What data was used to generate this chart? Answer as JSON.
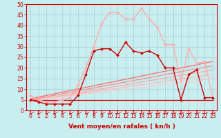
{
  "xlabel": "Vent moyen/en rafales ( kn/h )",
  "xlim": [
    -0.5,
    23.5
  ],
  "ylim": [
    0,
    50
  ],
  "xticks": [
    0,
    1,
    2,
    3,
    4,
    5,
    6,
    7,
    8,
    9,
    10,
    11,
    12,
    13,
    14,
    15,
    16,
    17,
    18,
    19,
    20,
    21,
    22,
    23
  ],
  "yticks": [
    0,
    5,
    10,
    15,
    20,
    25,
    30,
    35,
    40,
    45,
    50
  ],
  "background_color": "#c8eef0",
  "grid_color": "#aacccc",
  "lines": [
    {
      "x": [
        0,
        1,
        2,
        3,
        4,
        5,
        6,
        7,
        8,
        9,
        10,
        11,
        12,
        13,
        14,
        15,
        16,
        17,
        18,
        19,
        20,
        21,
        22,
        23
      ],
      "y": [
        5,
        4,
        3,
        3,
        3,
        3,
        7,
        17,
        28,
        29,
        29,
        26,
        32,
        28,
        27,
        28,
        26,
        20,
        20,
        5,
        17,
        19,
        6,
        6
      ],
      "color": "#cc0000",
      "marker": "D",
      "markersize": 2.0,
      "linewidth": 1.0,
      "zorder": 6
    },
    {
      "x": [
        0,
        1,
        2,
        3,
        4,
        5,
        6,
        7,
        8,
        9,
        10,
        11,
        12,
        13,
        14,
        15,
        16,
        17,
        18,
        19,
        20,
        21,
        22,
        23
      ],
      "y": [
        7,
        5,
        4,
        4,
        5,
        6,
        12,
        20,
        30,
        41,
        46,
        46,
        43,
        43,
        48,
        43,
        39,
        31,
        31,
        14,
        29,
        22,
        23,
        6
      ],
      "color": "#ffaaaa",
      "marker": "D",
      "markersize": 2.0,
      "linewidth": 1.0,
      "zorder": 5
    },
    {
      "x": [
        0,
        23
      ],
      "y": [
        5.5,
        23
      ],
      "color": "#ff6666",
      "marker": null,
      "linewidth": 0.9,
      "zorder": 3
    },
    {
      "x": [
        0,
        23
      ],
      "y": [
        5.0,
        21
      ],
      "color": "#ff8888",
      "marker": null,
      "linewidth": 0.9,
      "zorder": 3
    },
    {
      "x": [
        0,
        23
      ],
      "y": [
        4.5,
        19
      ],
      "color": "#ffaaaa",
      "marker": null,
      "linewidth": 0.9,
      "zorder": 3
    },
    {
      "x": [
        0,
        23
      ],
      "y": [
        4.5,
        17
      ],
      "color": "#ffbbbb",
      "marker": null,
      "linewidth": 0.9,
      "zorder": 3
    },
    {
      "x": [
        0,
        23
      ],
      "y": [
        4.5,
        15
      ],
      "color": "#ffcccc",
      "marker": null,
      "linewidth": 0.9,
      "zorder": 3
    },
    {
      "x": [
        0,
        23
      ],
      "y": [
        5.0,
        5.0
      ],
      "color": "#cc0000",
      "marker": null,
      "linewidth": 0.9,
      "zorder": 3
    }
  ],
  "tick_color": "#cc0000",
  "axis_color": "#cc0000",
  "label_color": "#cc0000",
  "label_fontsize": 6.5,
  "tick_fontsize": 5.5
}
